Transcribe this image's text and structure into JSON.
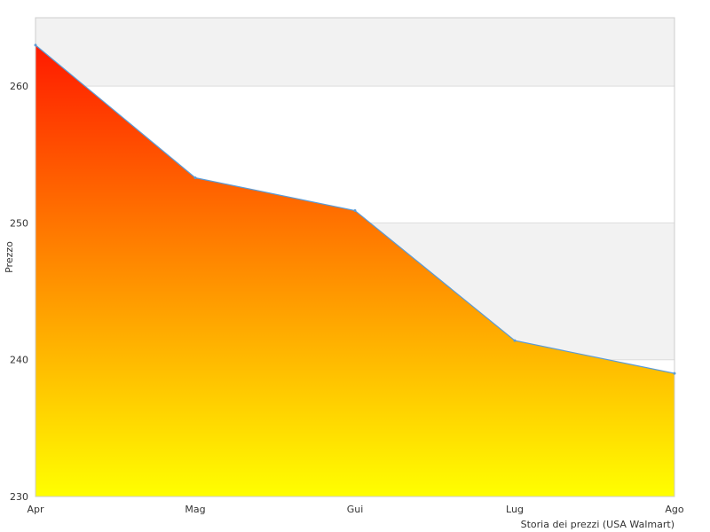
{
  "chart_data": {
    "type": "area",
    "title": "",
    "xlabel": "Storia dei prezzi (USA Walmart)",
    "ylabel": "Prezzo",
    "categories": [
      "Apr",
      "Mag",
      "Gui",
      "Lug",
      "Ago"
    ],
    "series": [
      {
        "values": [
          263,
          253.3,
          250.9,
          241.4,
          239
        ]
      }
    ],
    "ylim": [
      230,
      265
    ],
    "yticks": [
      230,
      240,
      250,
      260
    ],
    "grid": true,
    "legend": "none",
    "colors": {
      "gradient_top": "#ff1a00",
      "gradient_bottom": "#ffff00",
      "line": "#5b9bd5",
      "band": "#f2f2f2",
      "gridline": "#dddddd",
      "frame": "#cccccc"
    }
  }
}
